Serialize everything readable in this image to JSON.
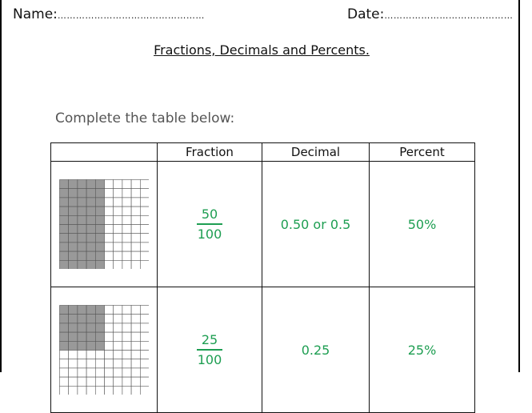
{
  "header": {
    "name_label": "Name:",
    "name_dots": "…………………………………………",
    "date_label": "Date:",
    "date_dots": "……………………………………"
  },
  "title": "Fractions, Decimals and Percents.",
  "instruction": "Complete the table below:",
  "table": {
    "columns": [
      "",
      "Fraction",
      "Decimal",
      "Percent"
    ],
    "rows": [
      {
        "shaded_columns": 5,
        "grid_size": 10,
        "numerator": "50",
        "denominator": "100",
        "decimal": "0.50 or 0.5",
        "percent": "50%"
      },
      {
        "shaded_columns": 5,
        "shaded_rows": 5,
        "grid_size": 10,
        "numerator": "25",
        "denominator": "100",
        "decimal": "0.25",
        "percent": "25%"
      }
    ]
  },
  "colors": {
    "answer_green": "#1e9e52",
    "shade_gray": "#999999"
  }
}
